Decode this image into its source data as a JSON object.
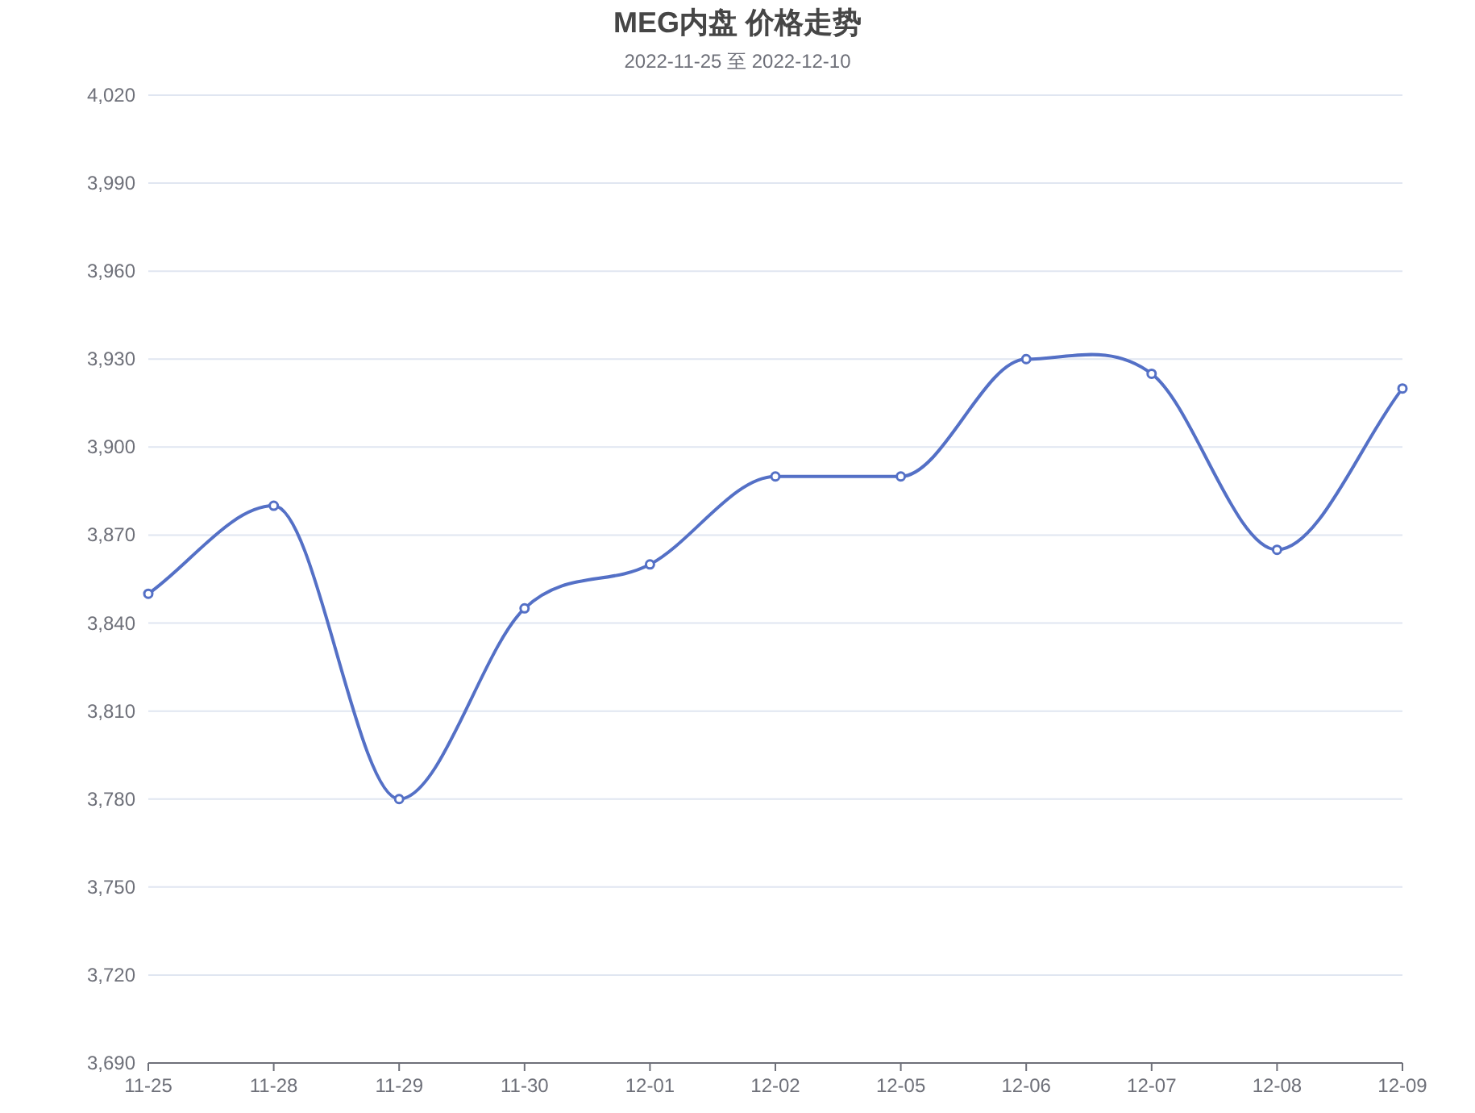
{
  "chart_data": {
    "type": "line",
    "title": "MEG内盘 价格走势",
    "subtitle": "2022-11-25 至 2022-12-10",
    "categories": [
      "11-25",
      "11-28",
      "11-29",
      "11-30",
      "12-01",
      "12-02",
      "12-05",
      "12-06",
      "12-07",
      "12-08",
      "12-09"
    ],
    "series": [
      {
        "color": "#5470c6",
        "values": [
          3850,
          3880,
          3780,
          3845,
          3860,
          3890,
          3890,
          3930,
          3925,
          3865,
          3920
        ]
      }
    ],
    "ylim": [
      3690,
      4020
    ],
    "yticks": [
      {
        "value": 3690,
        "label": "3,690"
      },
      {
        "value": 3720,
        "label": "3,720"
      },
      {
        "value": 3750,
        "label": "3,750"
      },
      {
        "value": 3780,
        "label": "3,780"
      },
      {
        "value": 3810,
        "label": "3,810"
      },
      {
        "value": 3840,
        "label": "3,840"
      },
      {
        "value": 3870,
        "label": "3,870"
      },
      {
        "value": 3900,
        "label": "3,900"
      },
      {
        "value": 3930,
        "label": "3,930"
      },
      {
        "value": 3960,
        "label": "3,960"
      },
      {
        "value": 3990,
        "label": "3,990"
      },
      {
        "value": 4020,
        "label": "4,020"
      }
    ],
    "grid": "y",
    "marker": "circle",
    "line_style": "solid"
  }
}
